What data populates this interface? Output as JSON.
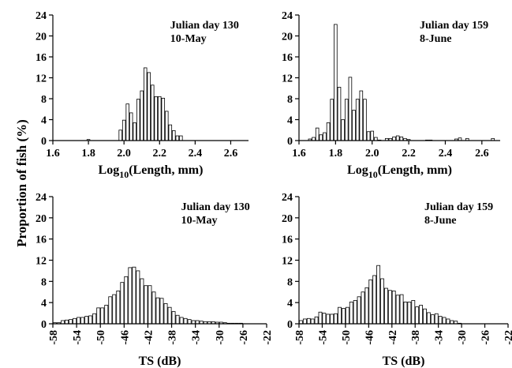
{
  "figure": {
    "ylabel": "Proportion of fish (%)"
  },
  "chart_data": [
    {
      "type": "bar",
      "panel": "top-left",
      "annotation": [
        "Julian day 130",
        "10-May"
      ],
      "xlabel": "Log10(Length, mm)",
      "xlabel_base": "Log",
      "xlabel_sub": "10",
      "xlabel_rest": "(Length, mm)",
      "ylabel": "Proportion of fish (%)",
      "xlim": [
        1.6,
        2.7
      ],
      "ylim": [
        0,
        24
      ],
      "xticks": [
        1.6,
        1.8,
        2.0,
        2.2,
        2.4,
        2.6
      ],
      "xtick_labels": [
        "1.6",
        "1.8",
        "2.0",
        "2.2",
        "2.4",
        "2.6"
      ],
      "yticks": [
        0,
        4,
        8,
        12,
        16,
        20,
        24
      ],
      "bin_width": 0.02,
      "x": [
        1.72,
        1.74,
        1.76,
        1.78,
        1.8,
        1.82,
        1.84,
        1.86,
        1.88,
        1.9,
        1.92,
        1.94,
        1.96,
        1.98,
        2.0,
        2.02,
        2.04,
        2.06,
        2.08,
        2.1,
        2.12,
        2.14,
        2.16,
        2.18,
        2.2,
        2.22,
        2.24,
        2.26,
        2.28,
        2.3,
        2.32,
        2.34,
        2.36,
        2.38,
        2.4
      ],
      "values": [
        0,
        0,
        0,
        0,
        0.2,
        0,
        0,
        0,
        0,
        0,
        0,
        0,
        0,
        2.0,
        3.9,
        7.0,
        5.3,
        3.4,
        7.9,
        9.5,
        13.9,
        13.0,
        10.6,
        8.4,
        8.4,
        8.1,
        5.6,
        3.0,
        1.9,
        0.9,
        0.9,
        0,
        0,
        0,
        0
      ],
      "grid": false,
      "bar_fill": "#ffffff",
      "bar_stroke": "#000000"
    },
    {
      "type": "bar",
      "panel": "top-right",
      "annotation": [
        "Julian day 159",
        "8-June"
      ],
      "xlabel": "Log10(Length, mm)",
      "xlabel_base": "Log",
      "xlabel_sub": "10",
      "xlabel_rest": "(Length, mm)",
      "ylabel": "Proportion of fish (%)",
      "xlim": [
        1.6,
        2.7
      ],
      "ylim": [
        0,
        24
      ],
      "xticks": [
        1.6,
        1.8,
        2.0,
        2.2,
        2.4,
        2.6
      ],
      "xtick_labels": [
        "1.6",
        "1.8",
        "2.0",
        "2.2",
        "2.4",
        "2.6"
      ],
      "yticks": [
        0,
        4,
        8,
        12,
        16,
        20,
        24
      ],
      "bin_width": 0.02,
      "x": [
        1.66,
        1.68,
        1.7,
        1.72,
        1.74,
        1.76,
        1.78,
        1.8,
        1.82,
        1.84,
        1.86,
        1.88,
        1.9,
        1.92,
        1.94,
        1.96,
        1.98,
        2.0,
        2.02,
        2.04,
        2.06,
        2.08,
        2.1,
        2.12,
        2.14,
        2.16,
        2.18,
        2.2,
        2.22,
        2.24,
        2.26,
        2.28,
        2.3,
        2.32,
        2.34,
        2.36,
        2.38,
        2.4,
        2.42,
        2.44,
        2.46,
        2.48,
        2.5,
        2.52,
        2.54,
        2.56,
        2.58,
        2.6,
        2.62,
        2.64,
        2.66
      ],
      "values": [
        0.3,
        0.6,
        2.4,
        1.1,
        1.5,
        3.4,
        7.9,
        22.2,
        10.2,
        4.0,
        7.9,
        12.1,
        5.8,
        7.9,
        9.5,
        7.9,
        1.7,
        1.8,
        0.6,
        0.1,
        0,
        0.4,
        0.4,
        0.7,
        0.9,
        0.7,
        0.4,
        0.2,
        0,
        0,
        0,
        0,
        0.1,
        0.1,
        0,
        0,
        0,
        0,
        0,
        0,
        0.3,
        0.5,
        0,
        0.4,
        0,
        0,
        0,
        0,
        0,
        0,
        0.4
      ],
      "grid": false,
      "bar_fill": "#ffffff",
      "bar_stroke": "#000000"
    },
    {
      "type": "bar",
      "panel": "bottom-left",
      "annotation": [
        "Julian day 130",
        "10-May"
      ],
      "xlabel": "TS (dB)",
      "ylabel": "Proportion of fish (%)",
      "xlim": [
        -58,
        -22
      ],
      "ylim": [
        0,
        24
      ],
      "xticks": [
        -58,
        -54,
        -50,
        -46,
        -42,
        -38,
        -34,
        -30,
        -26,
        -22
      ],
      "xtick_labels": [
        "-58",
        "-54",
        "-50",
        "-46",
        "-42",
        "-38",
        "-34",
        "-30",
        "-26",
        "-22"
      ],
      "yticks": [
        0,
        4,
        8,
        12,
        16,
        20,
        24
      ],
      "bin_width": 0.667,
      "x": [
        -57.67,
        -57.0,
        -56.33,
        -55.67,
        -55.0,
        -54.33,
        -53.67,
        -53.0,
        -52.33,
        -51.67,
        -51.0,
        -50.33,
        -49.67,
        -49.0,
        -48.33,
        -47.67,
        -47.0,
        -46.33,
        -45.67,
        -45.0,
        -44.33,
        -43.67,
        -43.0,
        -42.33,
        -41.67,
        -41.0,
        -40.33,
        -39.67,
        -39.0,
        -38.33,
        -37.67,
        -37.0,
        -36.33,
        -35.67,
        -35.0,
        -34.33,
        -33.67,
        -33.0,
        -32.33,
        -31.67,
        -31.0,
        -30.33,
        -29.67,
        -29.0,
        -28.33,
        -27.67,
        -27.0,
        -26.33,
        -25.67,
        -25.0
      ],
      "values": [
        0.2,
        0.2,
        0.6,
        0.7,
        0.8,
        1.0,
        1.2,
        1.2,
        1.4,
        1.5,
        1.9,
        3.0,
        3.0,
        3.5,
        5.1,
        5.5,
        6.2,
        7.8,
        8.9,
        10.6,
        10.7,
        10.0,
        8.5,
        7.2,
        7.2,
        6.0,
        4.9,
        4.8,
        3.8,
        3.1,
        2.3,
        1.6,
        1.2,
        1.0,
        0.8,
        0.6,
        0.6,
        0.5,
        0.4,
        0.4,
        0.4,
        0.3,
        0.3,
        0.2,
        0.1,
        0.1,
        0.1,
        0.1,
        0.0,
        0.0
      ],
      "grid": false,
      "bar_fill": "#ffffff",
      "bar_stroke": "#000000"
    },
    {
      "type": "bar",
      "panel": "bottom-right",
      "annotation": [
        "Julian day 159",
        "8-June"
      ],
      "xlabel": "TS (dB)",
      "ylabel": "Proportion of fish (%)",
      "xlim": [
        -58,
        -22
      ],
      "ylim": [
        0,
        24
      ],
      "xticks": [
        -58,
        -54,
        -50,
        -46,
        -42,
        -38,
        -34,
        -30,
        -26,
        -22
      ],
      "xtick_labels": [
        "-58",
        "-54",
        "-50",
        "-46",
        "-42",
        "-38",
        "-34",
        "-30",
        "-26",
        "-22"
      ],
      "yticks": [
        0,
        4,
        8,
        12,
        16,
        20,
        24
      ],
      "bin_width": 0.667,
      "x": [
        -57.67,
        -57.0,
        -56.33,
        -55.67,
        -55.0,
        -54.33,
        -53.67,
        -53.0,
        -52.33,
        -51.67,
        -51.0,
        -50.33,
        -49.67,
        -49.0,
        -48.33,
        -47.67,
        -47.0,
        -46.33,
        -45.67,
        -45.0,
        -44.33,
        -43.67,
        -43.0,
        -42.33,
        -41.67,
        -41.0,
        -40.33,
        -39.67,
        -39.0,
        -38.33,
        -37.67,
        -37.0,
        -36.33,
        -35.67,
        -35.0,
        -34.33,
        -33.67,
        -33.0,
        -32.33,
        -31.67,
        -31.0,
        -30.33,
        -29.67,
        -29.0,
        -28.33,
        -27.67,
        -27.0,
        -26.33,
        -25.67,
        -25.0
      ],
      "values": [
        0.6,
        0.9,
        1.0,
        0.9,
        1.3,
        2.2,
        2.0,
        1.8,
        1.8,
        1.9,
        3.1,
        2.9,
        3.1,
        4.1,
        4.4,
        5.1,
        6.0,
        6.8,
        8.3,
        9.1,
        11.0,
        8.5,
        6.7,
        6.3,
        6.2,
        5.4,
        5.5,
        4.1,
        4.1,
        4.4,
        3.2,
        3.5,
        2.8,
        2.1,
        1.7,
        1.9,
        1.4,
        1.2,
        0.9,
        0.6,
        0.5,
        0.1,
        0.0,
        0.0,
        0.0,
        0.0,
        0.0,
        0.0,
        0.0,
        0.0
      ],
      "grid": false,
      "bar_fill": "#ffffff",
      "bar_stroke": "#000000"
    }
  ]
}
